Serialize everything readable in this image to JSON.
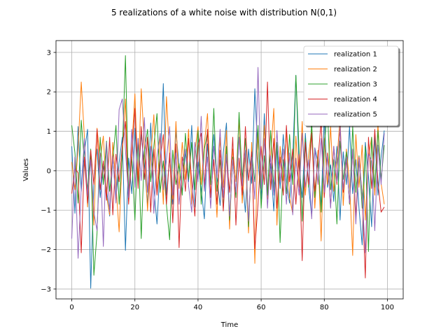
{
  "chart_data": {
    "type": "line",
    "title": "5 realizations of a white noise with distribution N(0,1)",
    "xlabel": "Time",
    "ylabel": "Values",
    "xlim": [
      -5,
      105
    ],
    "ylim": [
      -3.25,
      3.3
    ],
    "xticks": [
      0,
      20,
      40,
      60,
      80,
      100
    ],
    "yticks": [
      -3,
      -2,
      -1,
      0,
      1,
      2,
      3
    ],
    "grid": true,
    "legend_position": "top-right",
    "x": [
      0,
      1,
      2,
      3,
      4,
      5,
      6,
      7,
      8,
      9,
      10,
      11,
      12,
      13,
      14,
      15,
      16,
      17,
      18,
      19,
      20,
      21,
      22,
      23,
      24,
      25,
      26,
      27,
      28,
      29,
      30,
      31,
      32,
      33,
      34,
      35,
      36,
      37,
      38,
      39,
      40,
      41,
      42,
      43,
      44,
      45,
      46,
      47,
      48,
      49,
      50,
      51,
      52,
      53,
      54,
      55,
      56,
      57,
      58,
      59,
      60,
      61,
      62,
      63,
      64,
      65,
      66,
      67,
      68,
      69,
      70,
      71,
      72,
      73,
      74,
      75,
      76,
      77,
      78,
      79,
      80,
      81,
      82,
      83,
      84,
      85,
      86,
      87,
      88,
      89,
      90,
      91,
      92,
      93,
      94,
      95,
      96,
      97,
      98,
      99
    ],
    "series": [
      {
        "name": "realization 1",
        "color": "#1f77b4",
        "values": [
          0.62,
          -1.08,
          1.12,
          -0.52,
          0.48,
          1.05,
          -2.98,
          -0.32,
          0.55,
          -0.68,
          0.12,
          -0.45,
          -1.15,
          0.35,
          -0.72,
          0.21,
          0.85,
          -2.02,
          0.32,
          -0.58,
          1.08,
          -0.35,
          0.92,
          0.18,
          -0.88,
          1.21,
          -0.42,
          -1.35,
          0.15,
          2.21,
          -0.62,
          0.35,
          -0.85,
          1.02,
          0.12,
          -0.55,
          0.48,
          -0.28,
          1.15,
          -0.92,
          0.22,
          -0.45,
          -1.22,
          0.68,
          -0.35,
          0.92,
          -0.15,
          -0.88,
          0.45,
          1.21,
          -1.28,
          0.32,
          -0.62,
          0.85,
          -0.18,
          -1.05,
          0.55,
          -0.32,
          2.08,
          0.28,
          -0.72,
          1.45,
          -0.55,
          0.18,
          -1.02,
          0.65,
          -0.45,
          0.92,
          -0.25,
          -0.82,
          0.35,
          2.42,
          0.12,
          -0.68,
          0.95,
          -0.38,
          -1.15,
          0.58,
          0.22,
          -0.92,
          1.38,
          -0.42,
          0.15,
          -0.78,
          0.62,
          -1.25,
          0.48,
          -0.35,
          1.12,
          -0.58,
          0.28,
          -0.95,
          -1.88,
          0.72,
          -0.15,
          -1.42,
          0.88,
          -0.62,
          0.35,
          1.02
        ]
      },
      {
        "name": "realization 2",
        "color": "#ff7f0e",
        "values": [
          0.22,
          -0.48,
          0.55,
          2.25,
          0.85,
          -0.92,
          0.45,
          -1.38,
          1.08,
          0.28,
          0.88,
          -0.62,
          -1.12,
          0.72,
          -0.35,
          -1.55,
          0.42,
          1.82,
          -0.75,
          0.55,
          1.95,
          -0.28,
          2.08,
          0.65,
          -1.02,
          0.35,
          1.42,
          -0.58,
          0.92,
          -0.85,
          1.88,
          0.38,
          -0.72,
          1.25,
          -0.45,
          0.72,
          -0.22,
          1.05,
          -0.85,
          0.48,
          1.12,
          -0.35,
          0.68,
          1.45,
          -0.62,
          0.28,
          -1.18,
          0.85,
          -0.42,
          1.02,
          -1.48,
          0.55,
          -0.28,
          1.35,
          -0.82,
          0.42,
          -1.58,
          0.72,
          -2.35,
          0.95,
          -0.45,
          1.15,
          -0.72,
          0.35,
          1.58,
          -1.38,
          0.62,
          -0.25,
          1.02,
          -0.68,
          -1.08,
          0.88,
          -0.42,
          1.25,
          -0.62,
          0.38,
          1.05,
          -0.95,
          0.52,
          -1.78,
          0.82,
          -0.35,
          1.12,
          -0.52,
          0.25,
          1.35,
          -0.88,
          0.55,
          -0.28,
          -2.15,
          0.92,
          -0.42,
          0.65,
          -1.25,
          0.35,
          0.85,
          -0.62,
          1.18,
          -0.32,
          -0.85
        ]
      },
      {
        "name": "realization 3",
        "color": "#2ca02c",
        "values": [
          1.15,
          0.45,
          -0.82,
          1.28,
          0.22,
          -0.48,
          0.55,
          -2.65,
          -1.58,
          0.85,
          -0.35,
          0.75,
          -0.52,
          0.28,
          1.15,
          -0.85,
          0.42,
          2.92,
          -0.62,
          0.35,
          -1.25,
          0.82,
          -1.72,
          0.48,
          1.05,
          -0.28,
          0.62,
          1.45,
          -0.55,
          0.25,
          -0.88,
          -1.75,
          0.52,
          -0.35,
          0.18,
          -0.62,
          0.95,
          -0.22,
          0.72,
          -0.48,
          1.02,
          -0.85,
          0.55,
          0.98,
          -0.35,
          1.58,
          -0.52,
          0.28,
          -0.95,
          0.62,
          -1.25,
          0.35,
          -0.68,
          1.48,
          -0.22,
          0.82,
          -1.42,
          0.45,
          -0.28,
          1.15,
          -0.95,
          0.38,
          -0.62,
          1.02,
          -0.45,
          0.72,
          -1.82,
          0.28,
          -0.58,
          0.92,
          -0.35,
          2.42,
          0.55,
          -1.28,
          0.82,
          -0.42,
          1.25,
          -0.68,
          0.35,
          -1.05,
          0.62,
          1.58,
          -0.48,
          0.28,
          -1.35,
          0.75,
          -0.22,
          0.48,
          -0.85,
          1.12,
          -0.55,
          0.38,
          -0.95,
          0.62,
          -2.05,
          0.85,
          -0.42,
          1.02,
          -0.25,
          0.65
        ]
      },
      {
        "name": "realization 4",
        "color": "#d62728",
        "values": [
          -0.58,
          0.05,
          -0.05,
          -2.08,
          0.35,
          -0.82,
          0.52,
          -0.35,
          1.05,
          -0.48,
          0.25,
          -0.75,
          0.85,
          -1.12,
          0.42,
          -0.28,
          0.62,
          1.25,
          -0.85,
          0.38,
          1.58,
          -0.45,
          1.12,
          -0.22,
          0.85,
          -1.05,
          0.55,
          -0.62,
          0.28,
          0.92,
          -0.85,
          0.45,
          -1.32,
          0.68,
          -1.95,
          0.35,
          -0.52,
          0.82,
          -0.28,
          -1.15,
          0.62,
          0.95,
          -0.42,
          1.05,
          -0.68,
          0.28,
          -0.85,
          0.52,
          -1.02,
          0.38,
          -0.55,
          0.85,
          -1.38,
          0.32,
          -0.62,
          1.12,
          -0.25,
          0.48,
          -1.98,
          -0.85,
          0.62,
          -0.35,
          2.25,
          -0.48,
          0.82,
          -0.95,
          0.35,
          -0.62,
          1.15,
          -0.28,
          0.55,
          -0.85,
          0.42,
          -2.28,
          0.72,
          -0.35,
          0.95,
          -0.52,
          0.28,
          1.25,
          -0.68,
          0.45,
          -0.92,
          0.62,
          -0.35,
          1.08,
          -0.55,
          0.28,
          -0.82,
          0.52,
          -1.15,
          0.35,
          -0.62,
          -2.72,
          0.85,
          -0.45,
          1.05,
          -0.28,
          -1.05,
          -0.92
        ]
      },
      {
        "name": "realization 5",
        "color": "#9467bd",
        "values": [
          -1.72,
          0.35,
          -2.22,
          -0.45,
          0.82,
          -0.62,
          0.28,
          -1.05,
          -1.52,
          0.45,
          -1.92,
          0.72,
          -1.05,
          0.38,
          -0.82,
          1.55,
          1.82,
          0.52,
          -0.68,
          1.05,
          -0.42,
          0.82,
          -0.25,
          1.35,
          -0.55,
          0.62,
          -1.08,
          0.35,
          0.95,
          -0.48,
          0.28,
          1.12,
          -0.62,
          0.45,
          -0.85,
          0.18,
          0.55,
          -0.38,
          -1.05,
          0.72,
          -0.28,
          1.38,
          -0.52,
          0.35,
          -0.95,
          0.62,
          -0.18,
          1.05,
          -0.68,
          0.42,
          -1.15,
          0.28,
          -0.55,
          0.85,
          -0.38,
          0.52,
          -1.28,
          0.35,
          -0.72,
          2.62,
          -0.45,
          0.82,
          -0.95,
          0.38,
          -0.62,
          1.02,
          -0.28,
          0.55,
          -0.85,
          0.45,
          -1.12,
          0.32,
          -0.62,
          0.95,
          -0.42,
          0.28,
          -1.22,
          0.58,
          -0.35,
          0.82,
          -0.55,
          0.38,
          -0.95,
          0.62,
          -0.28,
          1.15,
          -0.48,
          0.35,
          -0.82,
          0.55,
          -1.35,
          0.28,
          -0.62,
          -2.08,
          0.42,
          0.25,
          -1.52,
          0.65,
          -0.35,
          0.95
        ]
      }
    ]
  }
}
